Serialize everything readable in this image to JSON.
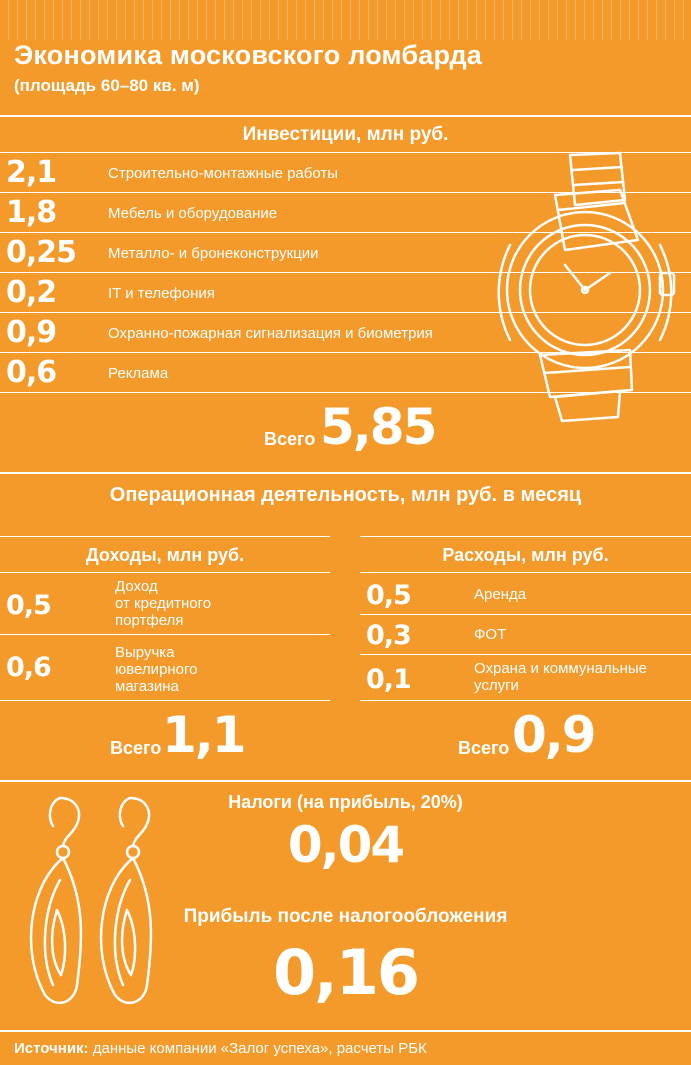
{
  "title": "Экономика московского ломбарда",
  "subtitle": "(площадь 60–80 кв. м)",
  "investments": {
    "heading": "Инвестиции, млн руб.",
    "items": [
      {
        "value": "2,1",
        "label": "Строительно-монтажные работы"
      },
      {
        "value": "1,8",
        "label": "Мебель и оборудование"
      },
      {
        "value": "0,25",
        "label": "Металло- и бронеконструкции"
      },
      {
        "value": "0,2",
        "label": "IT и телефония"
      },
      {
        "value": "0,9",
        "label": "Охранно-пожарная сигнализация и биометрия"
      },
      {
        "value": "0,6",
        "label": "Реклама"
      }
    ],
    "total_word": "Всего",
    "total_value": "5,85"
  },
  "operations": {
    "heading": "Операционная деятельность, млн руб. в месяц",
    "income": {
      "heading": "Доходы, млн руб.",
      "items": [
        {
          "value": "0,5",
          "label_lines": [
            "Доход",
            "от кредитного",
            "портфеля"
          ]
        },
        {
          "value": "0,6",
          "label_lines": [
            "Выручка",
            "ювелирного",
            "магазина"
          ]
        }
      ],
      "total_word": "Всего",
      "total_value": "1,1"
    },
    "expenses": {
      "heading": "Расходы, млн руб.",
      "items": [
        {
          "value": "0,5",
          "label_lines": [
            "Аренда"
          ]
        },
        {
          "value": "0,3",
          "label_lines": [
            "ФОТ"
          ]
        },
        {
          "value": "0,1",
          "label_lines": [
            "Охрана и коммунальные",
            "услуги"
          ]
        }
      ],
      "total_word": "Всего",
      "total_value": "0,9"
    }
  },
  "taxes": {
    "heading": "Налоги (на прибыль, 20%)",
    "value": "0,04"
  },
  "profit": {
    "heading": "Прибыль после налогообложения",
    "value": "0,16"
  },
  "source": {
    "label": "Источник:",
    "text": " данные компании «Залог успеха», расчеты РБК"
  },
  "icons": {
    "watch": "wristwatch-icon",
    "earrings": "earrings-icon"
  },
  "colors": {
    "background": "#f39a2a",
    "text": "#ffffff"
  }
}
